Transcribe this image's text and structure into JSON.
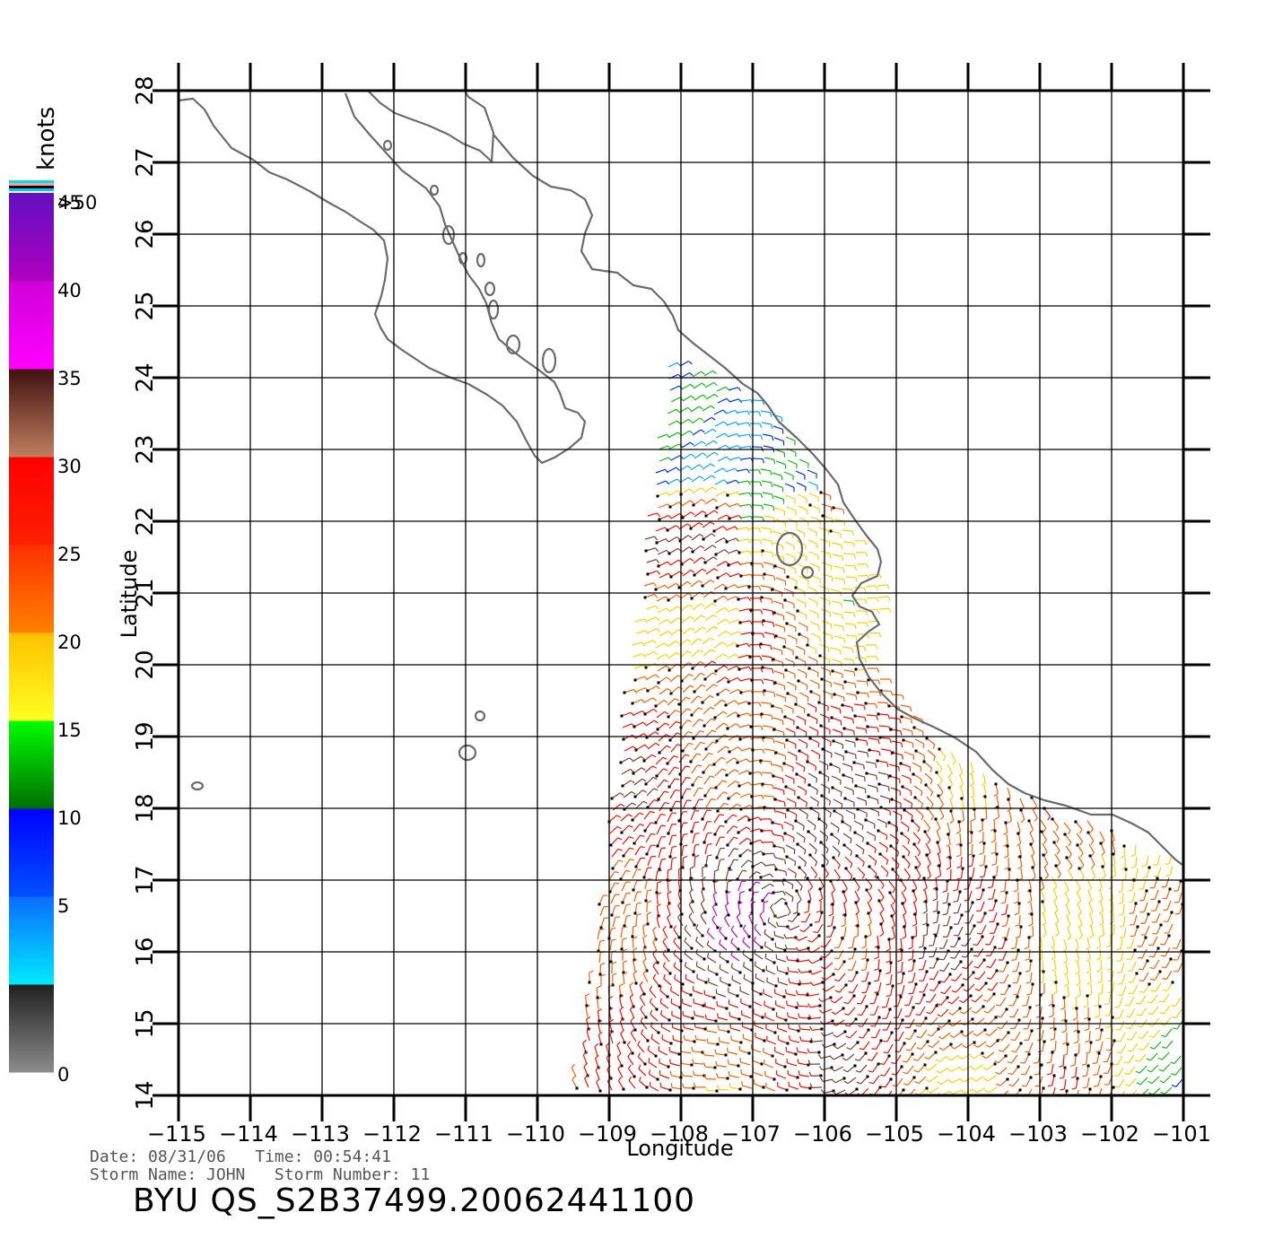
{
  "map": {
    "xlabel": "Longitude",
    "ylabel": "Latitude",
    "lon_ticks": [
      -115,
      -114,
      -113,
      -112,
      -111,
      -110,
      -109,
      -108,
      -107,
      -106,
      -105,
      -104,
      -103,
      -102,
      -101
    ],
    "lat_ticks": [
      14,
      15,
      16,
      17,
      18,
      19,
      20,
      21,
      22,
      23,
      24,
      25,
      26,
      27,
      28
    ],
    "lon_range": [
      -115,
      -101
    ],
    "lat_range": [
      14,
      28
    ]
  },
  "colorbar": {
    "title": "knots",
    "tick_labels": [
      "0",
      "5",
      "10",
      "15",
      "20",
      "25",
      "30",
      "35",
      "40",
      "45",
      ">50"
    ],
    "bands": [
      {
        "from": "#8c8c8c",
        "to": "#202020"
      },
      {
        "from": "#00eaff",
        "to": "#0a6cff"
      },
      {
        "from": "#0050ff",
        "to": "#0000ff"
      },
      {
        "from": "#006e00",
        "to": "#00ff00"
      },
      {
        "from": "#ffff20",
        "to": "#ffc000"
      },
      {
        "from": "#ff8000",
        "to": "#ff3000"
      },
      {
        "from": "#ff2000",
        "to": "#ff0000"
      },
      {
        "from": "#c08060",
        "to": "#401010"
      },
      {
        "from": "#ff00ff",
        "to": "#d000d8"
      },
      {
        "from": "#b000c0",
        "to": "#6010c0"
      }
    ]
  },
  "footer": {
    "line1": "Date: 08/31/06   Time: 00:54:41",
    "line2": "Storm Name: JOHN   Storm Number: 11",
    "title": "BYU QS_S2B37499.20062441100"
  }
}
